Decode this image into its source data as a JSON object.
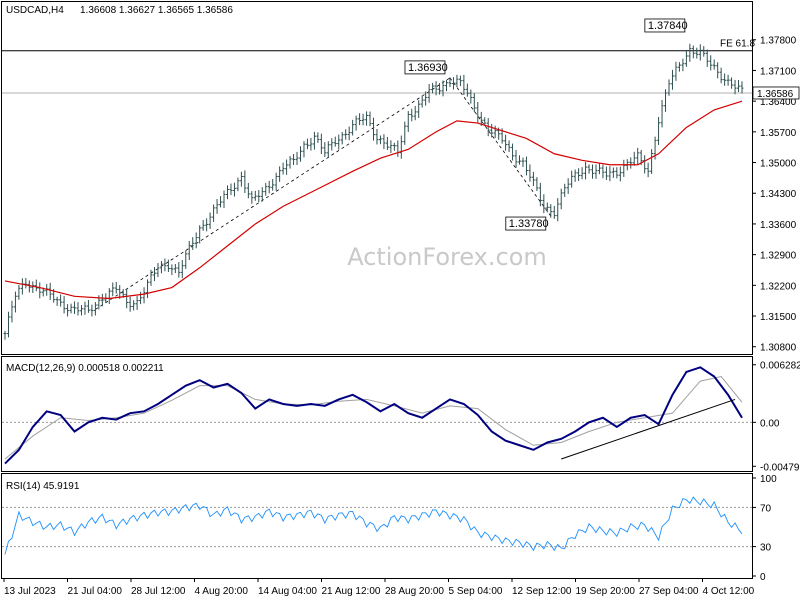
{
  "header": {
    "symbol": "USDCAD,H4",
    "ohlc": "1.36608 1.36627 1.36565 1.36586"
  },
  "watermark": "ActionForex.com",
  "colors": {
    "candles": "#2f4f4f",
    "ma": "#d40000",
    "macd": "#000080",
    "signal": "#a0a0a0",
    "rsi": "#1e90ff",
    "trend": "#000000",
    "level": "#000000"
  },
  "chart_data": [
    {
      "type": "candlestick",
      "title": "USDCAD,H4",
      "x_tick_labels": [
        "13 Jul 2023",
        "21 Jul 04:00",
        "28 Jul 12:00",
        "4 Aug 20:00",
        "14 Aug 04:00",
        "21 Aug 12:00",
        "28 Aug 20:00",
        "5 Sep 04:00",
        "12 Sep 12:00",
        "19 Sep 20:00",
        "27 Sep 04:00",
        "4 Oct 12:00"
      ],
      "y_tick_labels": [
        "1.37800",
        "1.37100",
        "1.36400",
        "1.35700",
        "1.35000",
        "1.34300",
        "1.33600",
        "1.32900",
        "1.32200",
        "1.31500",
        "1.30800"
      ],
      "ylim": [
        1.3068,
        1.3825
      ],
      "last_price": 1.36586,
      "last_price_label": "1.36586",
      "fib_level": {
        "label": "FE 61.8",
        "value": 1.3755
      },
      "annotations": [
        {
          "text": "1.36930",
          "value": 1.3693
        },
        {
          "text": "1.33780",
          "value": 1.3378
        },
        {
          "text": "1.37840",
          "value": 1.3784
        }
      ],
      "close_path": [
        [
          0,
          1.311
        ],
        [
          3,
          1.3195
        ],
        [
          6,
          1.323
        ],
        [
          9,
          1.3215
        ],
        [
          12,
          1.32
        ],
        [
          16,
          1.318
        ],
        [
          20,
          1.3165
        ],
        [
          24,
          1.316
        ],
        [
          28,
          1.3195
        ],
        [
          32,
          1.321
        ],
        [
          35,
          1.318
        ],
        [
          38,
          1.3185
        ],
        [
          41,
          1.322
        ],
        [
          44,
          1.326
        ],
        [
          47,
          1.327
        ],
        [
          50,
          1.325
        ],
        [
          53,
          1.33
        ],
        [
          56,
          1.335
        ],
        [
          59,
          1.338
        ],
        [
          62,
          1.341
        ],
        [
          65,
          1.344
        ],
        [
          68,
          1.347
        ],
        [
          71,
          1.341
        ],
        [
          74,
          1.343
        ],
        [
          77,
          1.346
        ],
        [
          80,
          1.349
        ],
        [
          83,
          1.35
        ],
        [
          86,
          1.354
        ],
        [
          89,
          1.356
        ],
        [
          92,
          1.352
        ],
        [
          95,
          1.355
        ],
        [
          98,
          1.357
        ],
        [
          101,
          1.359
        ],
        [
          104,
          1.36
        ],
        [
          107,
          1.356
        ],
        [
          110,
          1.354
        ],
        [
          113,
          1.352
        ],
        [
          116,
          1.361
        ],
        [
          119,
          1.363
        ],
        [
          122,
          1.366
        ],
        [
          125,
          1.367
        ],
        [
          128,
          1.369
        ],
        [
          131,
          1.368
        ],
        [
          134,
          1.364
        ],
        [
          137,
          1.36
        ],
        [
          140,
          1.357
        ],
        [
          143,
          1.355
        ],
        [
          146,
          1.352
        ],
        [
          149,
          1.35
        ],
        [
          152,
          1.345
        ],
        [
          155,
          1.34
        ],
        [
          158,
          1.339
        ],
        [
          161,
          1.344
        ],
        [
          164,
          1.347
        ],
        [
          167,
          1.349
        ],
        [
          170,
          1.348
        ],
        [
          173,
          1.347
        ],
        [
          176,
          1.348
        ],
        [
          179,
          1.35
        ],
        [
          182,
          1.351
        ],
        [
          185,
          1.348
        ],
        [
          188,
          1.36
        ],
        [
          191,
          1.368
        ],
        [
          194,
          1.372
        ],
        [
          197,
          1.376
        ],
        [
          200,
          1.375
        ],
        [
          203,
          1.372
        ],
        [
          206,
          1.37
        ],
        [
          209,
          1.368
        ],
        [
          212,
          1.3659
        ]
      ],
      "series": [
        {
          "name": "",
          "kind": "moving-average",
          "values": [
            [
              0,
              1.323
            ],
            [
              10,
              1.3215
            ],
            [
              20,
              1.3195
            ],
            [
              30,
              1.319
            ],
            [
              40,
              1.32
            ],
            [
              48,
              1.3215
            ],
            [
              56,
              1.326
            ],
            [
              64,
              1.331
            ],
            [
              72,
              1.336
            ],
            [
              80,
              1.34
            ],
            [
              90,
              1.344
            ],
            [
              100,
              1.348
            ],
            [
              108,
              1.351
            ],
            [
              116,
              1.353
            ],
            [
              124,
              1.357
            ],
            [
              130,
              1.3595
            ],
            [
              136,
              1.359
            ],
            [
              142,
              1.3575
            ],
            [
              150,
              1.3555
            ],
            [
              158,
              1.352
            ],
            [
              166,
              1.3505
            ],
            [
              174,
              1.3495
            ],
            [
              182,
              1.3495
            ],
            [
              188,
              1.352
            ],
            [
              196,
              1.358
            ],
            [
              204,
              1.362
            ],
            [
              212,
              1.364
            ]
          ]
        }
      ]
    },
    {
      "type": "line",
      "title": "MACD(12,26,9) 0.000518 0.002211",
      "y_tick_labels": [
        "0.006282",
        "0.00",
        "-0.004795"
      ],
      "ylim": [
        -0.0052,
        0.0068
      ],
      "series": [
        {
          "name": "",
          "values": [
            [
              0,
              -0.0045
            ],
            [
              4,
              -0.003
            ],
            [
              8,
              -0.0005
            ],
            [
              12,
              0.0012
            ],
            [
              16,
              0.0008
            ],
            [
              20,
              -0.001
            ],
            [
              24,
              0.0
            ],
            [
              28,
              0.0005
            ],
            [
              32,
              0.0003
            ],
            [
              36,
              0.001
            ],
            [
              40,
              0.0012
            ],
            [
              44,
              0.002
            ],
            [
              48,
              0.003
            ],
            [
              52,
              0.004
            ],
            [
              56,
              0.0046
            ],
            [
              60,
              0.0038
            ],
            [
              64,
              0.0042
            ],
            [
              68,
              0.0032
            ],
            [
              72,
              0.0015
            ],
            [
              76,
              0.0025
            ],
            [
              80,
              0.002
            ],
            [
              84,
              0.0018
            ],
            [
              88,
              0.002
            ],
            [
              92,
              0.0018
            ],
            [
              96,
              0.0025
            ],
            [
              100,
              0.003
            ],
            [
              104,
              0.0022
            ],
            [
              108,
              0.0012
            ],
            [
              112,
              0.002
            ],
            [
              116,
              0.001
            ],
            [
              120,
              0.0005
            ],
            [
              124,
              0.0015
            ],
            [
              128,
              0.0025
            ],
            [
              132,
              0.002
            ],
            [
              136,
              0.0008
            ],
            [
              140,
              -0.001
            ],
            [
              144,
              -0.002
            ],
            [
              148,
              -0.0025
            ],
            [
              152,
              -0.003
            ],
            [
              156,
              -0.0022
            ],
            [
              160,
              -0.0018
            ],
            [
              164,
              -0.001
            ],
            [
              168,
              0.0
            ],
            [
              172,
              0.0005
            ],
            [
              176,
              -0.0005
            ],
            [
              180,
              0.0005
            ],
            [
              184,
              0.0008
            ],
            [
              188,
              -0.0002
            ],
            [
              192,
              0.003
            ],
            [
              196,
              0.0055
            ],
            [
              200,
              0.006
            ],
            [
              204,
              0.005
            ],
            [
              208,
              0.003
            ],
            [
              212,
              0.0005
            ]
          ]
        },
        {
          "name": "",
          "values": [
            [
              0,
              -0.004
            ],
            [
              8,
              -0.0015
            ],
            [
              16,
              0.0005
            ],
            [
              24,
              0.0002
            ],
            [
              32,
              0.0005
            ],
            [
              40,
              0.001
            ],
            [
              48,
              0.0024
            ],
            [
              56,
              0.004
            ],
            [
              64,
              0.004
            ],
            [
              72,
              0.0025
            ],
            [
              80,
              0.002
            ],
            [
              88,
              0.0019
            ],
            [
              96,
              0.0023
            ],
            [
              104,
              0.0025
            ],
            [
              112,
              0.0018
            ],
            [
              120,
              0.001
            ],
            [
              128,
              0.0018
            ],
            [
              136,
              0.0015
            ],
            [
              144,
              -0.0008
            ],
            [
              152,
              -0.0025
            ],
            [
              160,
              -0.0022
            ],
            [
              168,
              -0.001
            ],
            [
              176,
              0.0
            ],
            [
              184,
              0.0005
            ],
            [
              192,
              0.001
            ],
            [
              200,
              0.0045
            ],
            [
              206,
              0.005
            ],
            [
              212,
              0.0022
            ]
          ]
        }
      ]
    },
    {
      "type": "line",
      "title": "RSI(14) 45.9191",
      "y_tick_labels": [
        "100",
        "70",
        "30",
        "0"
      ],
      "ylim": [
        0,
        100
      ],
      "levels": [
        70,
        30
      ],
      "series": [
        {
          "name": "",
          "values": [
            [
              0,
              22
            ],
            [
              4,
              62
            ],
            [
              8,
              55
            ],
            [
              12,
              50
            ],
            [
              16,
              52
            ],
            [
              20,
              45
            ],
            [
              24,
              55
            ],
            [
              28,
              60
            ],
            [
              32,
              52
            ],
            [
              36,
              58
            ],
            [
              40,
              62
            ],
            [
              44,
              65
            ],
            [
              48,
              66
            ],
            [
              52,
              70
            ],
            [
              56,
              72
            ],
            [
              60,
              62
            ],
            [
              64,
              68
            ],
            [
              68,
              58
            ],
            [
              72,
              60
            ],
            [
              76,
              66
            ],
            [
              80,
              60
            ],
            [
              84,
              62
            ],
            [
              88,
              65
            ],
            [
              92,
              58
            ],
            [
              96,
              62
            ],
            [
              100,
              64
            ],
            [
              104,
              54
            ],
            [
              108,
              48
            ],
            [
              112,
              60
            ],
            [
              116,
              58
            ],
            [
              120,
              62
            ],
            [
              124,
              66
            ],
            [
              128,
              62
            ],
            [
              132,
              58
            ],
            [
              136,
              44
            ],
            [
              140,
              40
            ],
            [
              144,
              36
            ],
            [
              148,
              34
            ],
            [
              152,
              30
            ],
            [
              156,
              32
            ],
            [
              160,
              28
            ],
            [
              164,
              42
            ],
            [
              168,
              50
            ],
            [
              172,
              46
            ],
            [
              176,
              44
            ],
            [
              180,
              50
            ],
            [
              184,
              52
            ],
            [
              188,
              40
            ],
            [
              192,
              68
            ],
            [
              196,
              78
            ],
            [
              200,
              76
            ],
            [
              204,
              72
            ],
            [
              208,
              55
            ],
            [
              212,
              46
            ]
          ]
        }
      ]
    }
  ]
}
